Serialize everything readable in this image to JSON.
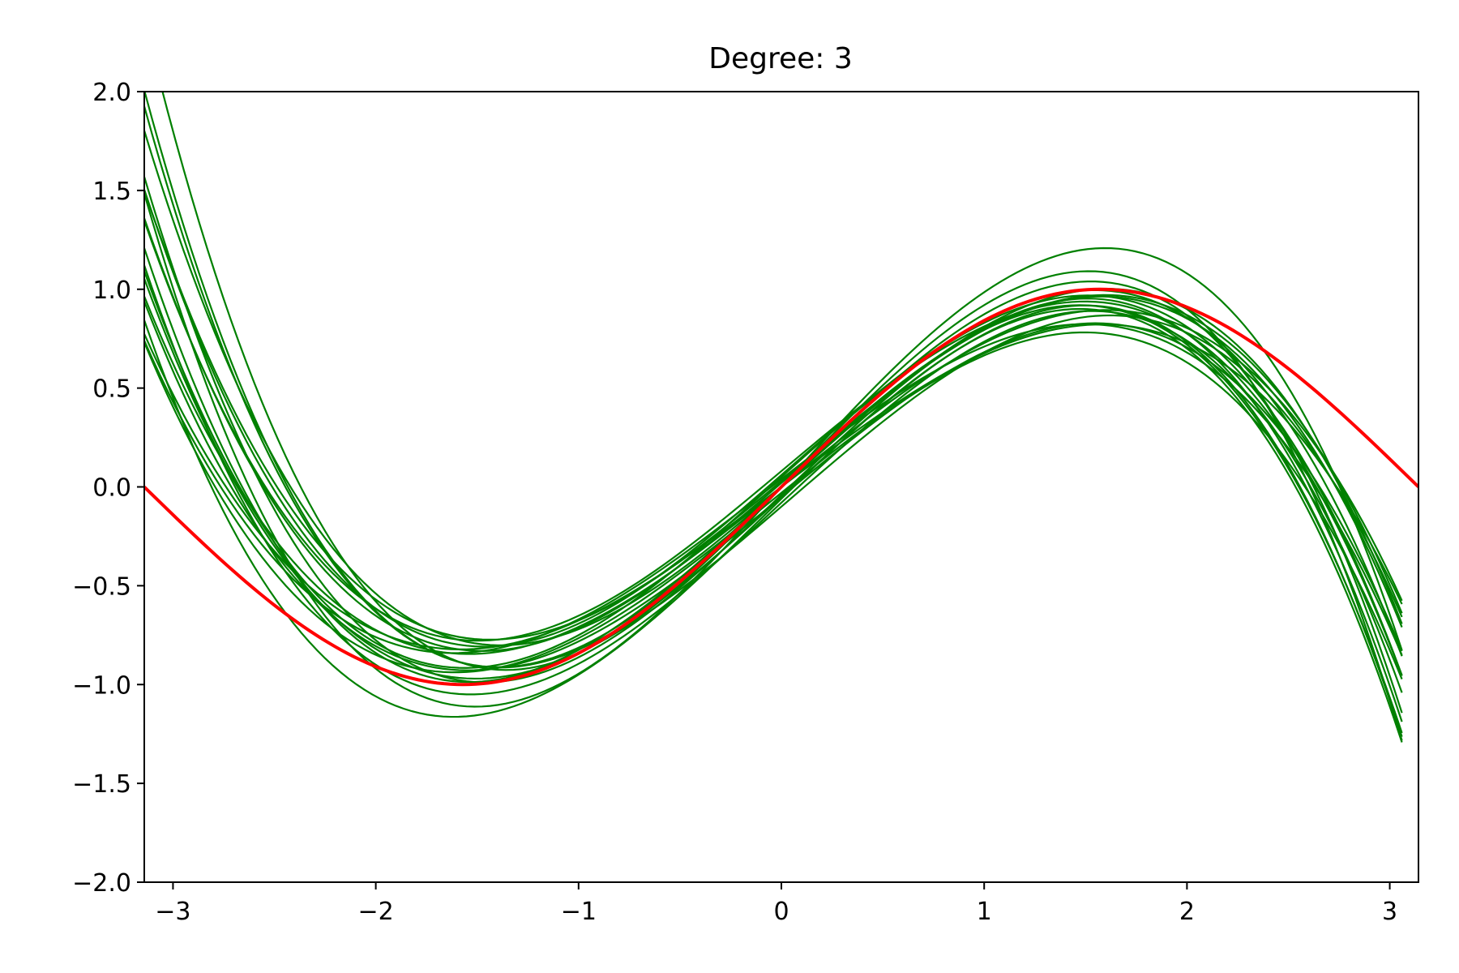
{
  "chart_data": {
    "type": "line",
    "title": "Degree: 3",
    "xlabel": "",
    "ylabel": "",
    "xlim": [
      -3.1416,
      3.1416
    ],
    "ylim": [
      -2.0,
      2.0
    ],
    "x_ticks": [
      -3,
      -2,
      -1,
      0,
      1,
      2,
      3
    ],
    "x_tick_labels": [
      "−3",
      "−2",
      "−1",
      "0",
      "1",
      "2",
      "3"
    ],
    "y_ticks": [
      -2.0,
      -1.5,
      -1.0,
      -0.5,
      0.0,
      0.5,
      1.0,
      1.5,
      2.0
    ],
    "y_tick_labels": [
      "−2.0",
      "−1.5",
      "−1.0",
      "−0.5",
      "0.0",
      "0.5",
      "1.0",
      "1.5",
      "2.0"
    ],
    "grid": false,
    "true_function": {
      "color": "#ff0000",
      "x": [
        -3.1416,
        -2.618,
        -2.0944,
        -1.5708,
        -1.0472,
        -0.5236,
        0.0,
        0.5236,
        1.0472,
        1.5708,
        2.0944,
        2.618,
        3.1416
      ],
      "y": [
        0.0,
        -0.5,
        -0.866,
        -1.0,
        -0.866,
        -0.5,
        0.0,
        0.5,
        0.866,
        1.0,
        0.866,
        0.5,
        0.0
      ]
    },
    "fitted_polynomials": {
      "color": "#008000",
      "x_range": [
        -3.1416,
        3.06
      ],
      "coefficients_c0_c1_c2_c3": [
        [
          0.0,
          1.0,
          0.03,
          -0.1565
        ],
        [
          -0.05,
          0.85,
          0.0,
          -0.118
        ],
        [
          0.05,
          0.92,
          -0.01,
          -0.13
        ],
        [
          0.0,
          0.78,
          0.0,
          -0.104
        ],
        [
          -0.08,
          0.95,
          0.0,
          -0.135
        ],
        [
          0.02,
          0.88,
          0.02,
          -0.126
        ],
        [
          -0.03,
          0.83,
          -0.02,
          -0.115
        ],
        [
          0.06,
          0.9,
          0.015,
          -0.133
        ],
        [
          0.0,
          0.95,
          -0.015,
          -0.14
        ],
        [
          0.0,
          1.05,
          0.04,
          -0.17
        ],
        [
          0.03,
          0.86,
          0.03,
          -0.125
        ],
        [
          -0.04,
          0.98,
          0.01,
          -0.148
        ],
        [
          -0.06,
          1.0,
          -0.03,
          -0.14
        ],
        [
          0.04,
          0.8,
          -0.02,
          -0.11
        ],
        [
          0.0,
          0.9,
          0.045,
          -0.135
        ],
        [
          -0.1,
          0.88,
          0.02,
          -0.12
        ],
        [
          0.08,
          0.86,
          0.0,
          -0.128
        ],
        [
          0.0,
          0.83,
          0.01,
          -0.112
        ],
        [
          -0.05,
          0.95,
          0.025,
          -0.152
        ],
        [
          0.0,
          1.12,
          0.02,
          -0.155
        ]
      ]
    }
  }
}
